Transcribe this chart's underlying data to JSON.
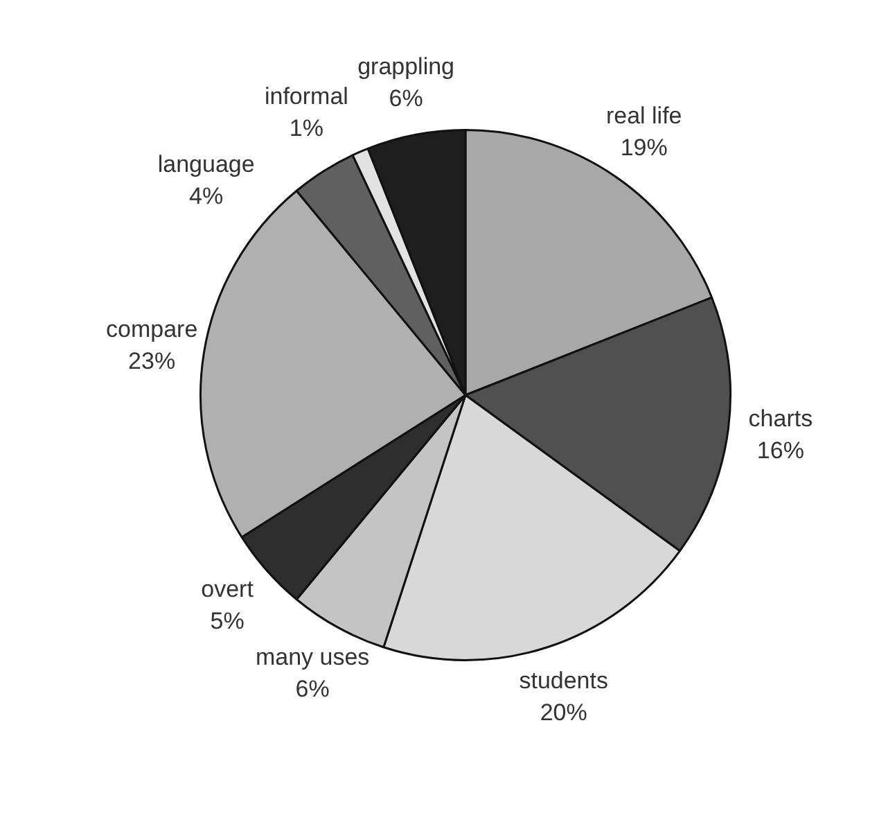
{
  "chart_data": {
    "type": "pie",
    "categories": [
      "real life",
      "charts",
      "students",
      "many uses",
      "overt",
      "compare",
      "language",
      "informal",
      "grappling"
    ],
    "values": [
      19,
      16,
      20,
      6,
      5,
      23,
      4,
      1,
      6
    ],
    "value_labels": [
      "19%",
      "16%",
      "20%",
      "6%",
      "5%",
      "23%",
      "4%",
      "1%",
      "6%"
    ],
    "colors": [
      "#a8a8a8",
      "#505050",
      "#d8d8d8",
      "#c4c4c4",
      "#2e2e2e",
      "#b0b0b0",
      "#606060",
      "#e2e2e2",
      "#1e1e1e"
    ],
    "legend": false
  }
}
